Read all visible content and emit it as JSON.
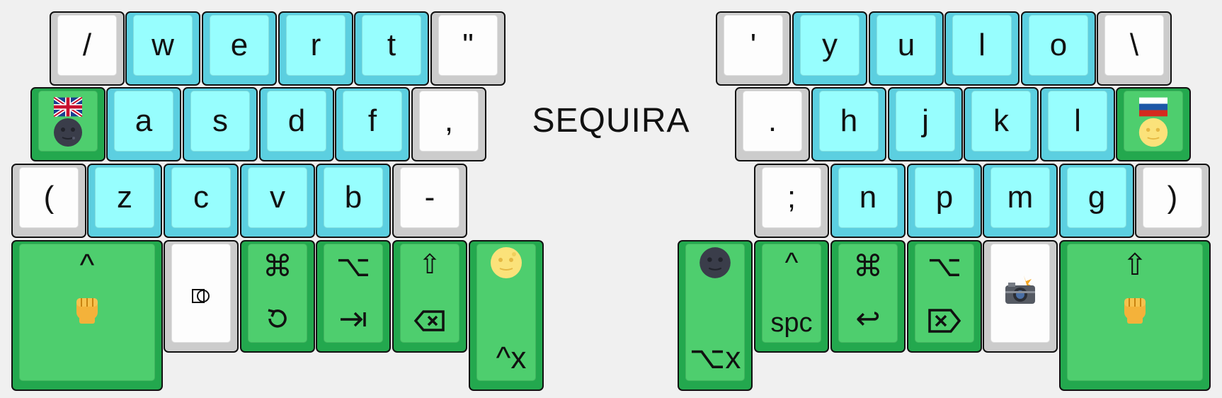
{
  "title": "SEQUIRA",
  "left": {
    "row1": [
      "/",
      "w",
      "e",
      "r",
      "t",
      "\""
    ],
    "row2": [
      "a",
      "s",
      "d",
      "f",
      ","
    ],
    "row3": [
      "(",
      "z",
      "c",
      "v",
      "b",
      "-"
    ],
    "thumbs": {
      "ctrl_top": "^",
      "cmd_top": "⌘",
      "opt_top": "⌥",
      "shift_top": "⇧",
      "ctrl_x": "^x"
    }
  },
  "right": {
    "row1": [
      "'",
      "y",
      "u",
      "l",
      "o",
      "\\"
    ],
    "row2": [
      ".",
      "h",
      "j",
      "k",
      "l"
    ],
    "row3": [
      ";",
      "n",
      "p",
      "m",
      "g",
      ")"
    ],
    "thumbs": {
      "opt_x": "⌥x",
      "ctrl_top": "^",
      "spc": "spc",
      "cmd_top": "⌘",
      "enter": "↩",
      "opt_top": "⌥",
      "shift_top": "⇧"
    }
  },
  "colors": {
    "cyan_face": "#97fefe",
    "cyan_border": "#5ccfe0",
    "white_face": "#fdfdfd",
    "white_border": "#cccccc",
    "green_face": "#4ece6e",
    "green_border": "#23a84e"
  },
  "icons": [
    "uk-flag-icon",
    "new-moon-face-icon",
    "russia-flag-icon",
    "full-moon-face-icon",
    "raised-fist-icon",
    "refresh-icon",
    "tab-icon",
    "backspace-icon",
    "delete-forward-icon",
    "camera-flash-icon",
    "layer-toggle-icon"
  ]
}
